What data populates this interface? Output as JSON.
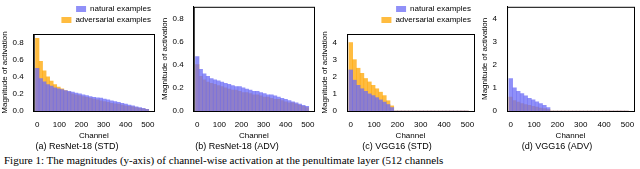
{
  "chart_data": [
    {
      "type": "bar",
      "title": "(a) ResNet-18 (STD)",
      "x_label": "Channel",
      "y_label": "Magnitude of activation",
      "x": [
        0,
        16,
        32,
        48,
        64,
        80,
        96,
        112,
        128,
        144,
        160,
        176,
        192,
        208,
        224,
        240,
        256,
        272,
        288,
        304,
        320,
        336,
        352,
        368,
        384,
        400,
        416,
        432,
        448,
        464,
        480,
        496
      ],
      "series": [
        {
          "name": "natural examples",
          "color": "#6b6bf5",
          "values": [
            0.5,
            0.38,
            0.34,
            0.31,
            0.29,
            0.27,
            0.26,
            0.25,
            0.24,
            0.23,
            0.22,
            0.21,
            0.2,
            0.19,
            0.18,
            0.17,
            0.16,
            0.155,
            0.15,
            0.14,
            0.13,
            0.12,
            0.11,
            0.1,
            0.09,
            0.08,
            0.07,
            0.06,
            0.05,
            0.04,
            0.03,
            0.02
          ]
        },
        {
          "name": "adversarial examples",
          "color": "#ffa500",
          "values": [
            0.85,
            0.58,
            0.47,
            0.4,
            0.35,
            0.31,
            0.28,
            0.26,
            0.24,
            0.22,
            0.2,
            0.19,
            0.18,
            0.17,
            0.16,
            0.15,
            0.14,
            0.13,
            0.12,
            0.11,
            0.1,
            0.09,
            0.085,
            0.08,
            0.07,
            0.06,
            0.055,
            0.05,
            0.04,
            0.03,
            0.025,
            0.02
          ]
        }
      ],
      "xlim": [
        -16,
        528
      ],
      "xticks": [
        0,
        100,
        200,
        300,
        400,
        500
      ],
      "ylim": [
        0,
        0.9
      ],
      "yticks": [
        {
          "value": 0,
          "label": "0.0"
        },
        0.2,
        0.4,
        0.6,
        0.8
      ],
      "legend": "upper right"
    },
    {
      "type": "bar",
      "title": "(b) ResNet-18 (ADV)",
      "x_label": "Channel",
      "y_label": "Magnitude of activation",
      "x": [
        0,
        16,
        32,
        48,
        64,
        80,
        96,
        112,
        128,
        144,
        160,
        176,
        192,
        208,
        224,
        240,
        256,
        272,
        288,
        304,
        320,
        336,
        352,
        368,
        384,
        400,
        416,
        432,
        448,
        464,
        480,
        496
      ],
      "series": [
        {
          "name": "natural examples",
          "color": "#6b6bf5",
          "values": [
            0.47,
            0.36,
            0.32,
            0.3,
            0.28,
            0.27,
            0.26,
            0.25,
            0.24,
            0.23,
            0.22,
            0.21,
            0.21,
            0.2,
            0.19,
            0.18,
            0.17,
            0.17,
            0.16,
            0.15,
            0.14,
            0.14,
            0.13,
            0.12,
            0.11,
            0.1,
            0.09,
            0.08,
            0.07,
            0.06,
            0.05,
            0.04
          ]
        },
        {
          "name": "adversarial examples",
          "color": "#ffa500",
          "values": [
            0.4,
            0.3,
            0.27,
            0.25,
            0.24,
            0.23,
            0.22,
            0.21,
            0.2,
            0.19,
            0.18,
            0.18,
            0.17,
            0.16,
            0.16,
            0.15,
            0.14,
            0.14,
            0.13,
            0.12,
            0.12,
            0.11,
            0.1,
            0.1,
            0.09,
            0.08,
            0.07,
            0.07,
            0.06,
            0.05,
            0.04,
            0.03
          ]
        }
      ],
      "xlim": [
        -16,
        528
      ],
      "xticks": [
        0,
        100,
        200,
        300,
        400,
        500
      ],
      "ylim": [
        0,
        0.9
      ],
      "yticks": [
        {
          "value": 0,
          "label": "0.0"
        },
        0.2,
        0.4,
        0.6,
        0.8
      ]
    },
    {
      "type": "bar",
      "title": "(c) VGG16 (STD)",
      "x_label": "Channel",
      "y_label": "Magnitude of activation",
      "x": [
        0,
        16,
        32,
        48,
        64,
        80,
        96,
        112,
        128,
        144,
        160,
        176,
        192,
        208,
        224,
        240,
        256,
        272,
        288,
        304,
        320,
        336,
        352,
        368,
        384,
        400,
        416,
        432,
        448,
        464,
        480,
        496
      ],
      "series": [
        {
          "name": "natural examples",
          "color": "#6b6bf5",
          "values": [
            2.4,
            1.8,
            1.5,
            1.3,
            1.15,
            1.0,
            0.9,
            0.78,
            0.65,
            0.52,
            0.38,
            0.2,
            0,
            0,
            0,
            0,
            0,
            0,
            0,
            0,
            0,
            0,
            0,
            0,
            0,
            0,
            0,
            0,
            0,
            0,
            0,
            0
          ]
        },
        {
          "name": "adversarial examples",
          "color": "#ffa500",
          "values": [
            4.0,
            3.0,
            2.5,
            2.2,
            1.9,
            1.7,
            1.5,
            1.3,
            1.1,
            0.9,
            0.6,
            0.3,
            0,
            0,
            0,
            0,
            0,
            0,
            0,
            0,
            0,
            0,
            0,
            0,
            0,
            0,
            0,
            0,
            0,
            0,
            0,
            0
          ]
        }
      ],
      "xlim": [
        -16,
        528
      ],
      "xticks": [
        0,
        100,
        200,
        300,
        400,
        500
      ],
      "ylim": [
        0,
        4.5
      ],
      "yticks": [
        0,
        1,
        2,
        3,
        4
      ],
      "legend": "upper right"
    },
    {
      "type": "bar",
      "title": "(d) VGG16 (ADV)",
      "x_label": "Channel",
      "y_label": "Magnitude of activation",
      "x": [
        0,
        16,
        32,
        48,
        64,
        80,
        96,
        112,
        128,
        144,
        160,
        176,
        192,
        208,
        224,
        240,
        256,
        272,
        288,
        304,
        320,
        336,
        352,
        368,
        384,
        400,
        416,
        432,
        448,
        464,
        480,
        496
      ],
      "series": [
        {
          "name": "natural examples",
          "color": "#6b6bf5",
          "values": [
            1.4,
            1.0,
            0.85,
            0.75,
            0.65,
            0.55,
            0.48,
            0.4,
            0.32,
            0.25,
            0.15,
            0,
            0,
            0,
            0,
            0,
            0,
            0,
            0,
            0,
            0,
            0,
            0,
            0,
            0,
            0,
            0,
            0,
            0,
            0,
            0,
            0
          ]
        },
        {
          "name": "adversarial examples",
          "color": "#ffa500",
          "values": [
            0.6,
            0.45,
            0.38,
            0.32,
            0.28,
            0.24,
            0.2,
            0.17,
            0.13,
            0.1,
            0.06,
            0,
            0,
            0,
            0,
            0,
            0,
            0,
            0,
            0,
            0,
            0,
            0,
            0,
            0,
            0,
            0,
            0,
            0,
            0,
            0,
            0
          ]
        }
      ],
      "xlim": [
        -16,
        528
      ],
      "xticks": [
        0,
        100,
        200,
        300,
        400,
        500
      ],
      "ylim": [
        0,
        4.5
      ],
      "yticks": [
        0,
        1,
        2,
        3,
        4
      ]
    }
  ],
  "caption": "Figure 1: The magnitudes (y-axis) of channel-wise activation at the penultimate layer (512 channels"
}
